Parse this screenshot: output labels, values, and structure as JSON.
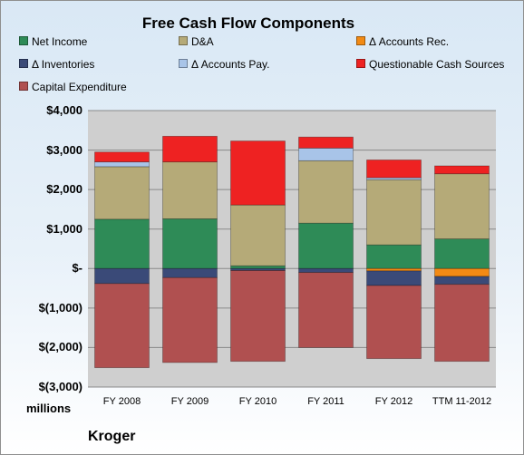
{
  "company": "Kroger",
  "unit_label": "millions",
  "chart_data": {
    "type": "bar",
    "stacked": true,
    "title": "Free Cash Flow Components",
    "categories": [
      "FY 2008",
      "FY 2009",
      "FY 2010",
      "FY 2011",
      "FY 2012",
      "TTM 11-2012"
    ],
    "ylim": [
      -3000,
      4000
    ],
    "yticks": [
      4000,
      3000,
      2000,
      1000,
      0,
      -1000,
      -2000,
      -3000
    ],
    "ytick_labels": [
      "$4,000",
      "$3,000",
      "$2,000",
      "$1,000",
      "$-",
      "$(1,000)",
      "$(2,000)",
      "$(3,000)"
    ],
    "grid": true,
    "legend_position": "top",
    "series": [
      {
        "name": "Net Income",
        "color": "#2e8b57",
        "values": [
          1250,
          1260,
          70,
          1150,
          600,
          750
        ]
      },
      {
        "name": "D&A",
        "color": "#b5aa78",
        "values": [
          1330,
          1440,
          1540,
          1580,
          1650,
          1650
        ]
      },
      {
        "name": "Δ Accounts Rec.",
        "color": "#f28a14",
        "values": [
          0,
          0,
          0,
          0,
          -60,
          -200
        ]
      },
      {
        "name": "Δ Inventories",
        "color": "#3a4a78",
        "values": [
          -380,
          -230,
          -50,
          -100,
          -370,
          -200
        ]
      },
      {
        "name": "Δ Accounts Pay.",
        "color": "#a8c4e8",
        "values": [
          120,
          0,
          0,
          320,
          50,
          0
        ]
      },
      {
        "name": "Questionable Cash Sources",
        "color": "#ee2222",
        "values": [
          250,
          650,
          1620,
          280,
          450,
          200
        ]
      },
      {
        "name": "Capital Expenditure",
        "color": "#b05050",
        "values": [
          -2130,
          -2150,
          -2300,
          -1900,
          -1850,
          -1950
        ]
      }
    ]
  }
}
